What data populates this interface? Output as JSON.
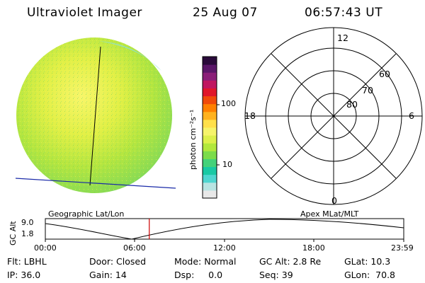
{
  "header": {
    "instrument": "Ultraviolet Imager",
    "date": "25 Aug 07",
    "time": "06:57:43 UT"
  },
  "colorbar": {
    "unit_label": "photon cm⁻²s⁻¹",
    "tick_100": "100",
    "tick_10": "10",
    "colors": [
      "#e8e8e8",
      "#b8e4e2",
      "#4fd6d0",
      "#19c9a4",
      "#44d27a",
      "#7bdc4a",
      "#b2e83c",
      "#ddf04a",
      "#f6f46a",
      "#ffe04a",
      "#ffb21e",
      "#ff8000",
      "#f04a0a",
      "#e0162a",
      "#c01660",
      "#8a1e78",
      "#5a1668",
      "#2a0a3a"
    ]
  },
  "polar_grid": {
    "mlt_labels": {
      "top": "12",
      "left": "18",
      "right": "6",
      "bottom": "0"
    },
    "lat_labels": [
      "60",
      "70",
      "80"
    ]
  },
  "timeline": {
    "left_label": "Geographic Lat/Lon",
    "right_label": "Apex MLat/MLT",
    "y_axis_label": "GC Alt",
    "y_ticks": [
      "9.0",
      "1.8"
    ],
    "x_ticks": [
      "00:00",
      "06:00",
      "12:00",
      "18:00",
      "23:59"
    ],
    "current_time_fraction": 0.29,
    "curve_color": "#000000",
    "marker_color": "#cc0000"
  },
  "status": {
    "row1": [
      {
        "key": "flt",
        "text": "Flt: LBHL"
      },
      {
        "key": "door",
        "text": "Door: Closed"
      },
      {
        "key": "mode",
        "text": "Mode: Normal"
      },
      {
        "key": "gcalt",
        "text": "GC Alt: 2.8 Re"
      },
      {
        "key": "glat",
        "text": "GLat:  10.3"
      }
    ],
    "row2": [
      {
        "key": "ip",
        "text": "IP: 36.0"
      },
      {
        "key": "gain",
        "text": "Gain: 14"
      },
      {
        "key": "dsp",
        "text": "Dsp:     0.0"
      },
      {
        "key": "seq",
        "text": "Seq: 39"
      },
      {
        "key": "glon",
        "text": "GLon:  70.8"
      }
    ]
  }
}
